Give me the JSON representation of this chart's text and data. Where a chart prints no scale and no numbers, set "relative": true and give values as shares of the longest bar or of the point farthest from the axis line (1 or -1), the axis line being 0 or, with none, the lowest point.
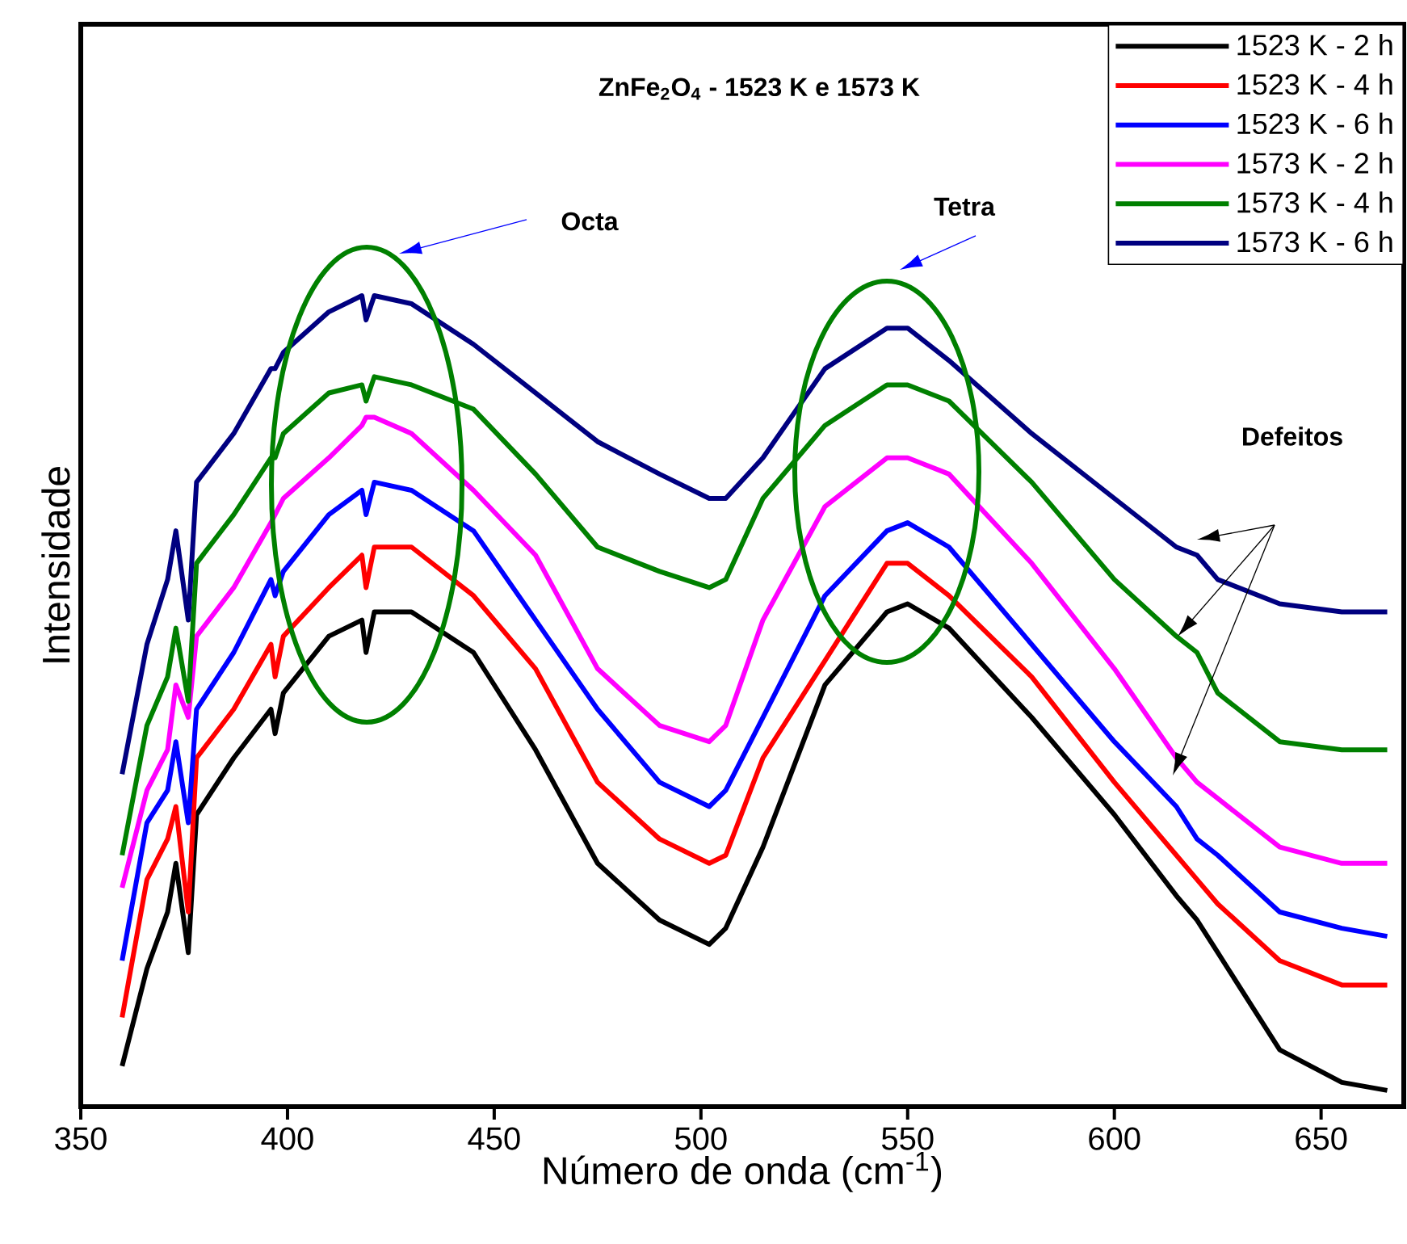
{
  "chart_data": {
    "type": "line",
    "title": "ZnFe$_{2}$O$_{4}$ - 1523 K e 1573 K",
    "xlabel": "Número de onda (cm$^{-1}$)",
    "ylabel": "Intensidade",
    "relative": true,
    "xlim": [
      350,
      670
    ],
    "xticks": [
      350,
      400,
      450,
      500,
      550,
      600,
      650
    ],
    "legend": "top right",
    "annotations": [
      "Octa",
      "Tetra",
      "Defeitos"
    ],
    "x": [
      360,
      366,
      371,
      373,
      376,
      378,
      387,
      396,
      397,
      399,
      410,
      418,
      419,
      421,
      430,
      445,
      460,
      475,
      490,
      502,
      506,
      515,
      530,
      545,
      550,
      560,
      580,
      600,
      615,
      620,
      625,
      640,
      655,
      666
    ],
    "series": [
      {
        "name": "1523 K - 2 h",
        "color": "#000000",
        "values": [
          0.05,
          0.17,
          0.24,
          0.3,
          0.19,
          0.36,
          0.43,
          0.49,
          0.46,
          0.51,
          0.58,
          0.6,
          0.56,
          0.61,
          0.61,
          0.56,
          0.44,
          0.3,
          0.23,
          0.2,
          0.22,
          0.32,
          0.52,
          0.61,
          0.62,
          0.59,
          0.48,
          0.36,
          0.26,
          0.23,
          0.19,
          0.07,
          0.03,
          0.02
        ]
      },
      {
        "name": "1523 K - 4 h",
        "color": "#ff0000",
        "values": [
          0.11,
          0.28,
          0.33,
          0.37,
          0.24,
          0.43,
          0.49,
          0.57,
          0.53,
          0.58,
          0.64,
          0.68,
          0.64,
          0.69,
          0.69,
          0.63,
          0.54,
          0.4,
          0.33,
          0.3,
          0.31,
          0.43,
          0.55,
          0.67,
          0.67,
          0.63,
          0.53,
          0.4,
          0.31,
          0.28,
          0.25,
          0.18,
          0.15,
          0.15
        ]
      },
      {
        "name": "1523 K - 6 h",
        "color": "#0000ff",
        "values": [
          0.18,
          0.35,
          0.39,
          0.45,
          0.35,
          0.49,
          0.56,
          0.65,
          0.63,
          0.66,
          0.73,
          0.76,
          0.73,
          0.77,
          0.76,
          0.71,
          0.6,
          0.49,
          0.4,
          0.37,
          0.39,
          0.48,
          0.63,
          0.71,
          0.72,
          0.69,
          0.57,
          0.45,
          0.37,
          0.33,
          0.31,
          0.24,
          0.22,
          0.21
        ]
      },
      {
        "name": "1573 K - 2 h",
        "color": "#ff00ff",
        "values": [
          0.27,
          0.39,
          0.44,
          0.52,
          0.48,
          0.58,
          0.64,
          0.72,
          0.73,
          0.75,
          0.8,
          0.84,
          0.85,
          0.85,
          0.83,
          0.76,
          0.68,
          0.54,
          0.47,
          0.45,
          0.47,
          0.6,
          0.74,
          0.8,
          0.8,
          0.78,
          0.67,
          0.54,
          0.43,
          0.4,
          0.38,
          0.32,
          0.3,
          0.3
        ]
      },
      {
        "name": "1573 K - 4 h",
        "color": "#008000",
        "values": [
          0.31,
          0.47,
          0.53,
          0.59,
          0.5,
          0.67,
          0.73,
          0.8,
          0.8,
          0.83,
          0.88,
          0.89,
          0.87,
          0.9,
          0.89,
          0.86,
          0.78,
          0.69,
          0.66,
          0.64,
          0.65,
          0.75,
          0.84,
          0.89,
          0.89,
          0.87,
          0.77,
          0.65,
          0.58,
          0.56,
          0.51,
          0.45,
          0.44,
          0.44
        ]
      },
      {
        "name": "1573 K - 6 h",
        "color": "#000080",
        "values": [
          0.41,
          0.57,
          0.65,
          0.71,
          0.6,
          0.77,
          0.83,
          0.91,
          0.91,
          0.93,
          0.98,
          1.0,
          0.97,
          1.0,
          0.99,
          0.94,
          0.88,
          0.82,
          0.78,
          0.75,
          0.75,
          0.8,
          0.91,
          0.96,
          0.96,
          0.92,
          0.83,
          0.75,
          0.69,
          0.68,
          0.65,
          0.62,
          0.61,
          0.61
        ]
      }
    ]
  }
}
